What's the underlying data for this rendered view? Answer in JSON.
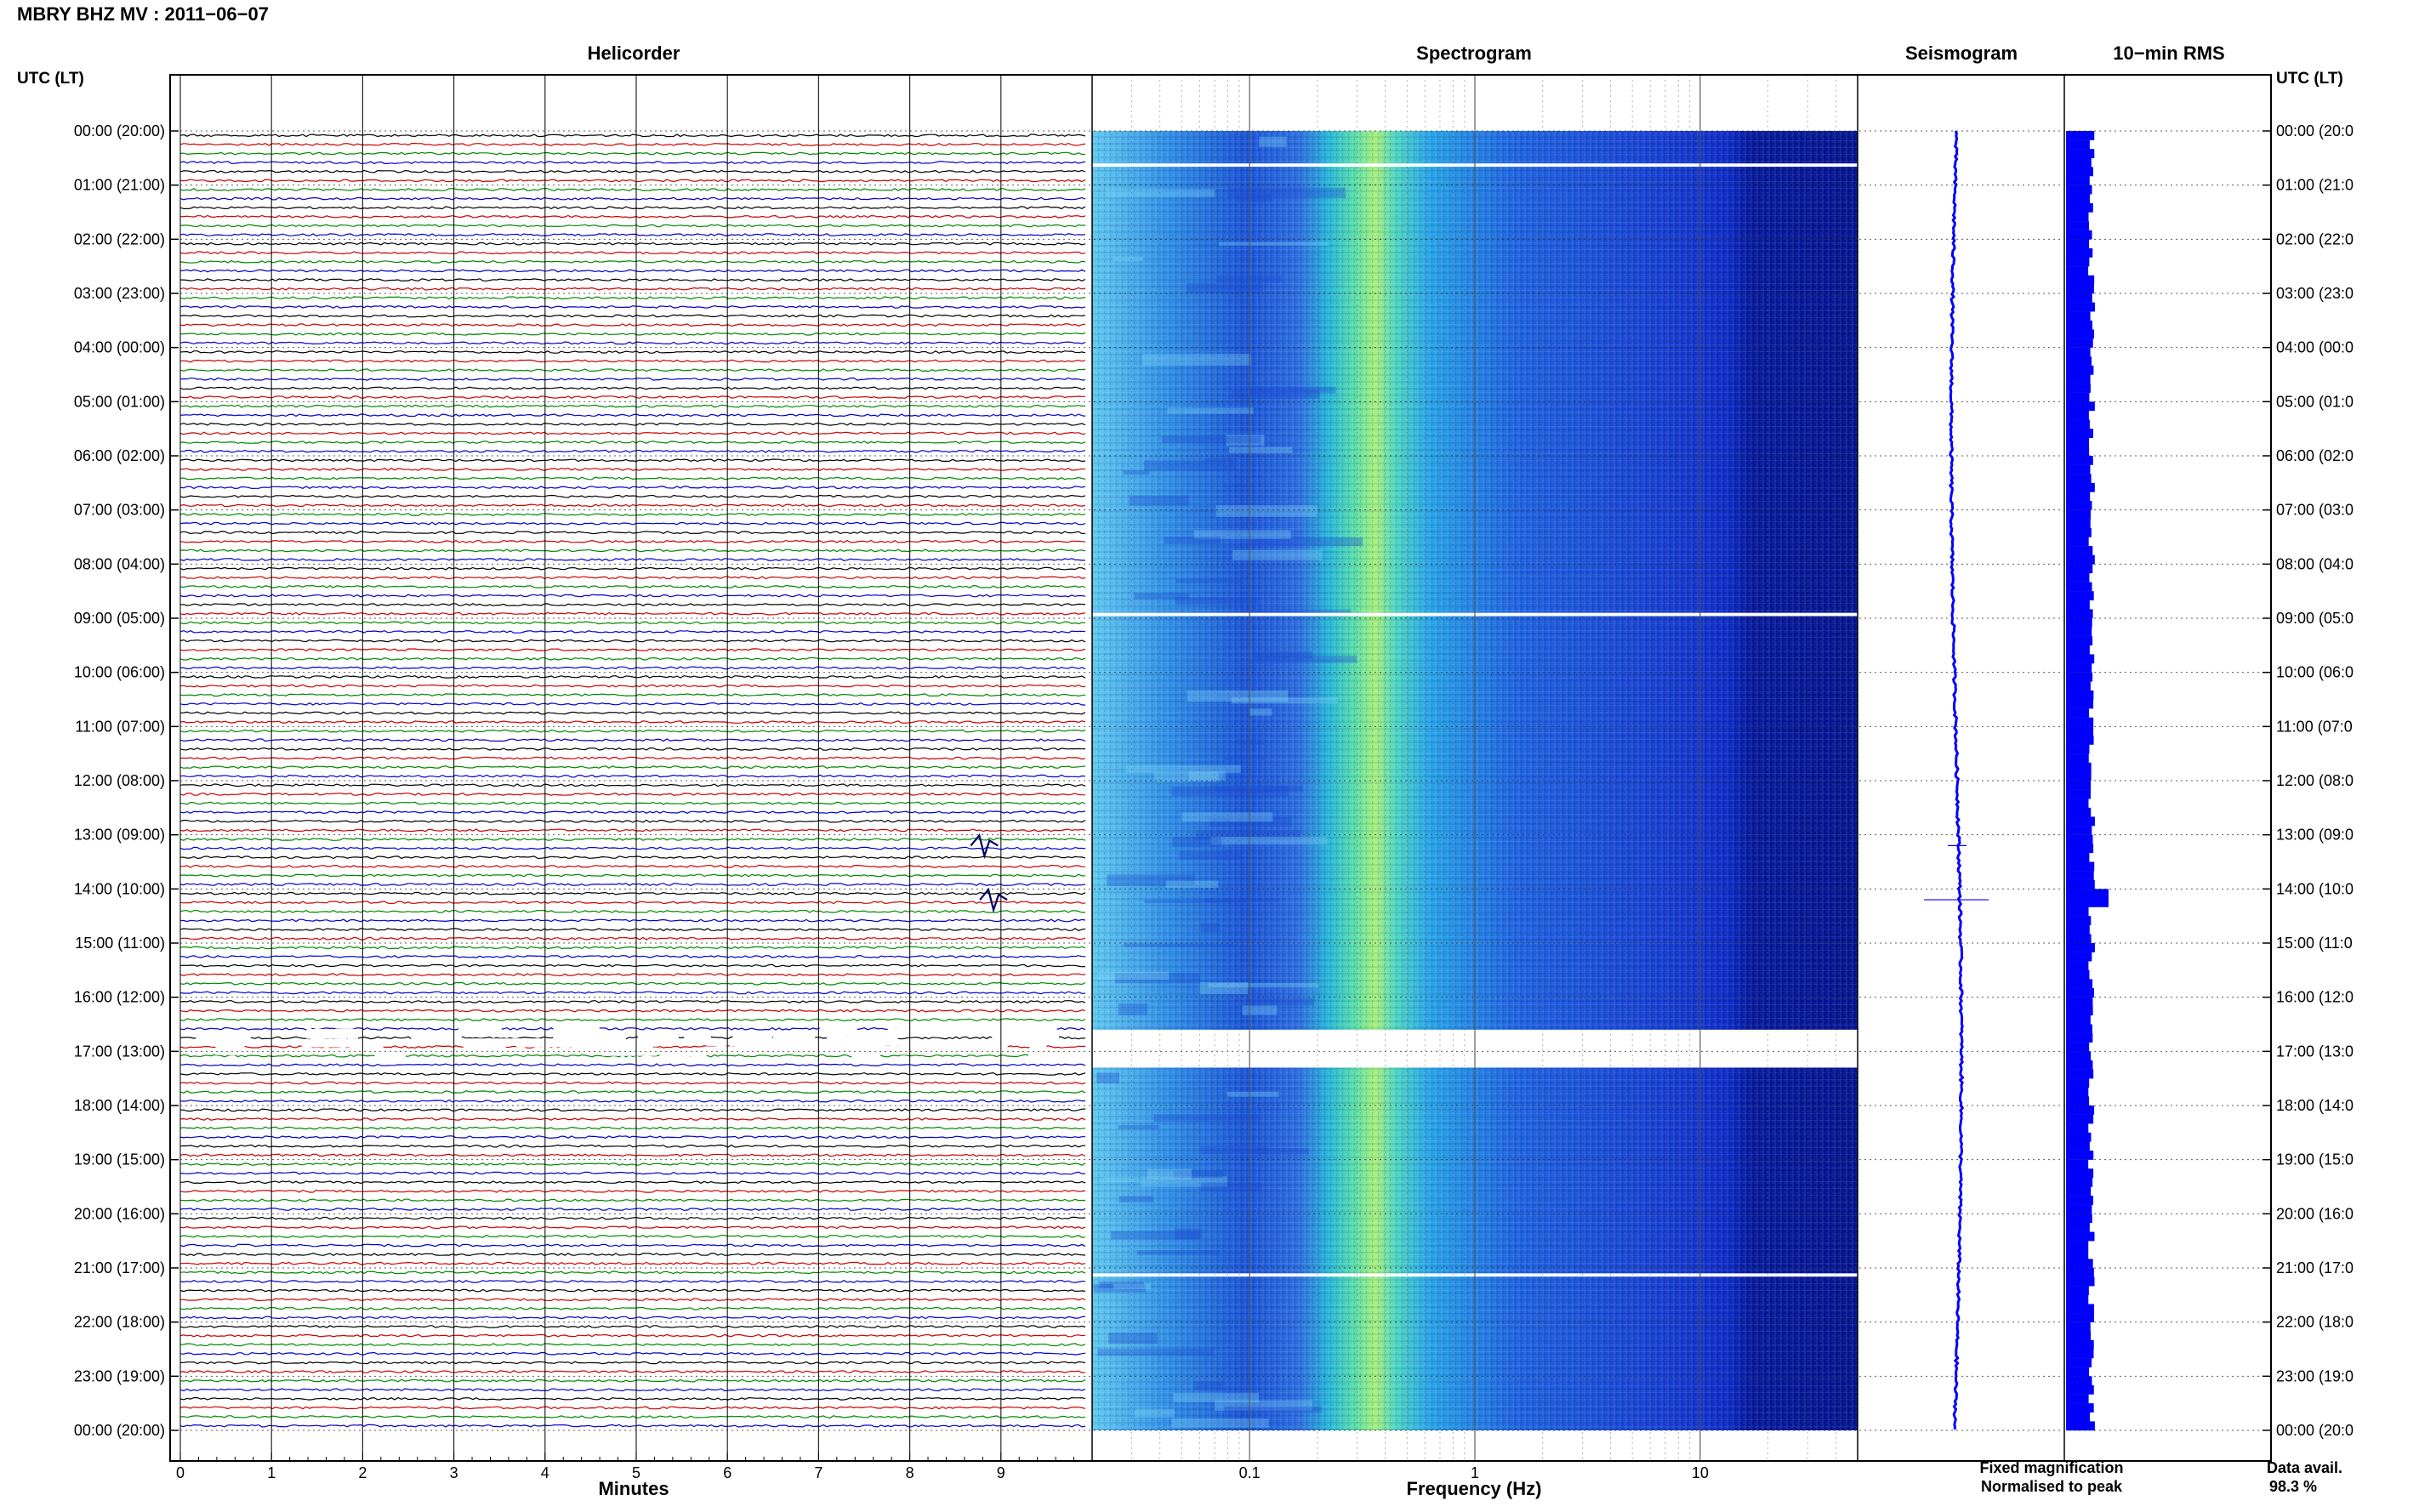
{
  "header": {
    "title": "MBRY BHZ MV : 2011−06−07"
  },
  "chart_data": {
    "type": "composite",
    "panels": {
      "helicorder": "Helicorder",
      "spectrogram": "Spectrogram",
      "seismogram": "Seismogram",
      "rms": "10−min RMS"
    },
    "time_axis": {
      "left_label": "UTC (LT)",
      "right_label": "UTC (LT)",
      "ticks_left": [
        "00:00 (20:00)",
        "01:00 (21:00)",
        "02:00 (22:00)",
        "03:00 (23:00)",
        "04:00 (00:00)",
        "05:00 (01:00)",
        "06:00 (02:00)",
        "07:00 (03:00)",
        "08:00 (04:00)",
        "09:00 (05:00)",
        "10:00 (06:00)",
        "11:00 (07:00)",
        "12:00 (08:00)",
        "13:00 (09:00)",
        "14:00 (10:00)",
        "15:00 (11:00)",
        "16:00 (12:00)",
        "17:00 (13:00)",
        "18:00 (14:00)",
        "19:00 (15:00)",
        "20:00 (16:00)",
        "21:00 (17:00)",
        "22:00 (18:00)",
        "23:00 (19:00)",
        "00:00 (20:00)"
      ],
      "ticks_right": [
        "00:00 (20:0",
        "01:00 (21:0",
        "02:00 (22:0",
        "03:00 (23:0",
        "04:00 (00:0",
        "05:00 (01:0",
        "06:00 (02:0",
        "07:00 (03:0",
        "08:00 (04:0",
        "09:00 (05:0",
        "10:00 (06:0",
        "11:00 (07:0",
        "12:00 (08:0",
        "13:00 (09:0",
        "14:00 (10:0",
        "15:00 (11:0",
        "16:00 (12:0",
        "17:00 (13:0",
        "18:00 (14:0",
        "19:00 (15:0",
        "20:00 (16:0",
        "21:00 (17:0",
        "22:00 (18:0",
        "23:00 (19:0",
        "00:00 (20:0"
      ],
      "hours": 24
    },
    "helicorder": {
      "xlabel": "Minutes",
      "x_ticks": [
        "0",
        "1",
        "2",
        "3",
        "4",
        "5",
        "6",
        "7",
        "8",
        "9"
      ],
      "xlim": [
        0,
        10
      ],
      "lines_per_hour": 6,
      "trace_colors": [
        "#000000",
        "#cc0000",
        "#008800",
        "#0000cc"
      ],
      "gap_hours": [
        16.5,
        17.0
      ],
      "events": [
        {
          "hour": 13.2,
          "minute": 8.8
        },
        {
          "hour": 14.2,
          "minute": 8.9
        }
      ]
    },
    "spectrogram": {
      "xlabel": "Frequency (Hz)",
      "x_ticks": [
        "0.1",
        "1",
        "10"
      ],
      "x_scale": "log",
      "xlim": [
        0.02,
        50
      ],
      "peak_band_hz": [
        0.3,
        0.4
      ],
      "gap_hours": [
        0.6,
        8.9,
        16.6,
        17.3,
        21.1
      ]
    },
    "seismogram": {
      "legend": [
        {
          "label": "Fixed magnification",
          "color": "#0000ff"
        },
        {
          "label": "Normalised to peak",
          "color": "#ff0000"
        }
      ]
    },
    "rms": {
      "color": "#0000ff",
      "footer_label": "Data avail.",
      "footer_value": "98.3 %"
    }
  }
}
